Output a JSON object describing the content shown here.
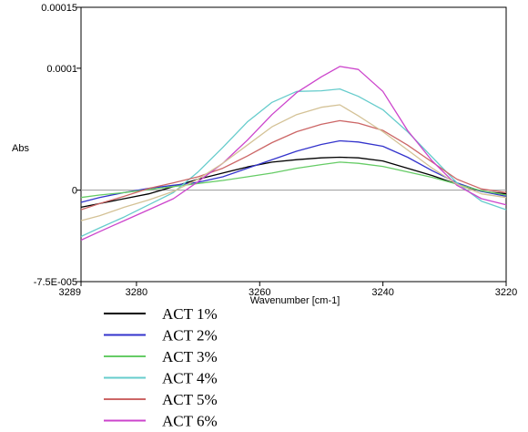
{
  "chart_data": {
    "type": "line",
    "title": "",
    "xlabel": "Wavenumber [cm-1]",
    "ylabel": "Abs",
    "xlim": [
      3289,
      3220
    ],
    "ylim": [
      -7.5e-05,
      0.00015
    ],
    "x_reversed": true,
    "grid": false,
    "legend_position": "bottom",
    "x_ticks": [
      {
        "value": 3289,
        "label": "3289"
      },
      {
        "value": 3280,
        "label": "3280"
      },
      {
        "value": 3260,
        "label": "3260"
      },
      {
        "value": 3240,
        "label": "3240"
      },
      {
        "value": 3220,
        "label": "3220"
      }
    ],
    "y_ticks": [
      {
        "value": 0.00015,
        "label": "0.00015"
      },
      {
        "value": 0.0001,
        "label": "0.0001"
      },
      {
        "value": 0,
        "label": "0"
      },
      {
        "value": -7.5e-05,
        "label": "-7.5E-005"
      }
    ],
    "series": [
      {
        "name": "ACT 1%",
        "color": "#000000",
        "x": [
          3289,
          3286,
          3282,
          3278,
          3274,
          3270,
          3266,
          3262,
          3258,
          3254,
          3250,
          3247,
          3244,
          3240,
          3236,
          3232,
          3228,
          3224,
          3220
        ],
        "y": [
          -1.4e-05,
          -1.1e-05,
          -7e-06,
          -3e-06,
          3e-06,
          9e-06,
          1.4e-05,
          1.9e-05,
          2.3e-05,
          2.5e-05,
          2.65e-05,
          2.7e-05,
          2.65e-05,
          2.4e-05,
          1.8e-05,
          1.2e-05,
          5e-06,
          -1e-06,
          -3e-06
        ]
      },
      {
        "name": "ACT 2%",
        "color": "#3333cc",
        "x": [
          3289,
          3286,
          3282,
          3278,
          3274,
          3270,
          3266,
          3262,
          3258,
          3254,
          3250,
          3247,
          3244,
          3240,
          3236,
          3232,
          3228,
          3224,
          3220
        ],
        "y": [
          -1e-05,
          -6e-06,
          -2e-06,
          1.5e-06,
          4e-06,
          6.5e-06,
          1.1e-05,
          1.8e-05,
          2.5e-05,
          3.2e-05,
          3.75e-05,
          4.05e-05,
          3.95e-05,
          3.6e-05,
          2.7e-05,
          1.6e-05,
          6e-06,
          -1e-06,
          -5e-06
        ]
      },
      {
        "name": "ACT 3%",
        "color": "#66cc66",
        "x": [
          3289,
          3286,
          3282,
          3278,
          3274,
          3270,
          3266,
          3262,
          3258,
          3254,
          3250,
          3247,
          3244,
          3240,
          3236,
          3232,
          3228,
          3224,
          3220
        ],
        "y": [
          -6e-06,
          -4e-06,
          -2e-06,
          5e-07,
          3e-06,
          5.5e-06,
          8e-06,
          1.1e-05,
          1.4e-05,
          1.8e-05,
          2.1e-05,
          2.3e-05,
          2.2e-05,
          1.95e-05,
          1.5e-05,
          1.05e-05,
          5e-06,
          -5e-07,
          -4e-06
        ]
      },
      {
        "name": "ACT 4%",
        "color": "#66cccc",
        "x": [
          3289,
          3286,
          3282,
          3278,
          3274,
          3270,
          3266,
          3262,
          3258,
          3254,
          3250,
          3247,
          3244,
          3240,
          3236,
          3232,
          3228,
          3224,
          3220
        ],
        "y": [
          -3.8e-05,
          -3.1e-05,
          -2.2e-05,
          -1.2e-05,
          -2e-06,
          1.5e-05,
          3.5e-05,
          5.6e-05,
          7.2e-05,
          8.1e-05,
          8.15e-05,
          8.3e-05,
          7.7e-05,
          6.6e-05,
          4.8e-05,
          2.7e-05,
          6e-06,
          -9e-06,
          -1.6e-05
        ]
      },
      {
        "name": "ACT 5%",
        "color": "#cc6666",
        "x": [
          3289,
          3286,
          3282,
          3278,
          3274,
          3270,
          3266,
          3262,
          3258,
          3254,
          3250,
          3247,
          3244,
          3240,
          3236,
          3232,
          3228,
          3224,
          3220
        ],
        "y": [
          -1.6e-05,
          -1.1e-05,
          -5e-06,
          1.5e-06,
          6e-06,
          1.1e-05,
          1.8e-05,
          2.8e-05,
          3.9e-05,
          4.8e-05,
          5.4e-05,
          5.7e-05,
          5.5e-05,
          4.9e-05,
          3.7e-05,
          2.3e-05,
          9e-06,
          1e-06,
          -2e-06
        ]
      },
      {
        "name": "ACT 6%",
        "color": "#cc44cc",
        "x": [
          3289,
          3286,
          3282,
          3278,
          3274,
          3270,
          3266,
          3262,
          3258,
          3254,
          3250,
          3247,
          3244,
          3240,
          3236,
          3232,
          3228,
          3224,
          3220
        ],
        "y": [
          -4.1e-05,
          -3.4e-05,
          -2.5e-05,
          -1.6e-05,
          -7e-06,
          7e-06,
          2.2e-05,
          4.1e-05,
          6.2e-05,
          8e-05,
          9.3e-05,
          0.0001015,
          9.9e-05,
          8.1e-05,
          4.9e-05,
          2.4e-05,
          4e-06,
          -7e-06,
          -1.2e-05
        ]
      }
    ],
    "extra_series": [
      {
        "color": "#d4c296",
        "x": [
          3289,
          3286,
          3282,
          3278,
          3274,
          3270,
          3266,
          3262,
          3258,
          3254,
          3250,
          3247,
          3244,
          3240,
          3236,
          3232,
          3228,
          3224,
          3220
        ],
        "y": [
          -2.5e-05,
          -2.1e-05,
          -1.4e-05,
          -8e-06,
          -1e-06,
          9e-06,
          2.2e-05,
          3.7e-05,
          5.2e-05,
          6.2e-05,
          6.8e-05,
          7e-05,
          6.1e-05,
          4.8e-05,
          3.3e-05,
          1.8e-05,
          5e-06,
          -3e-06,
          -6e-06
        ]
      }
    ]
  }
}
